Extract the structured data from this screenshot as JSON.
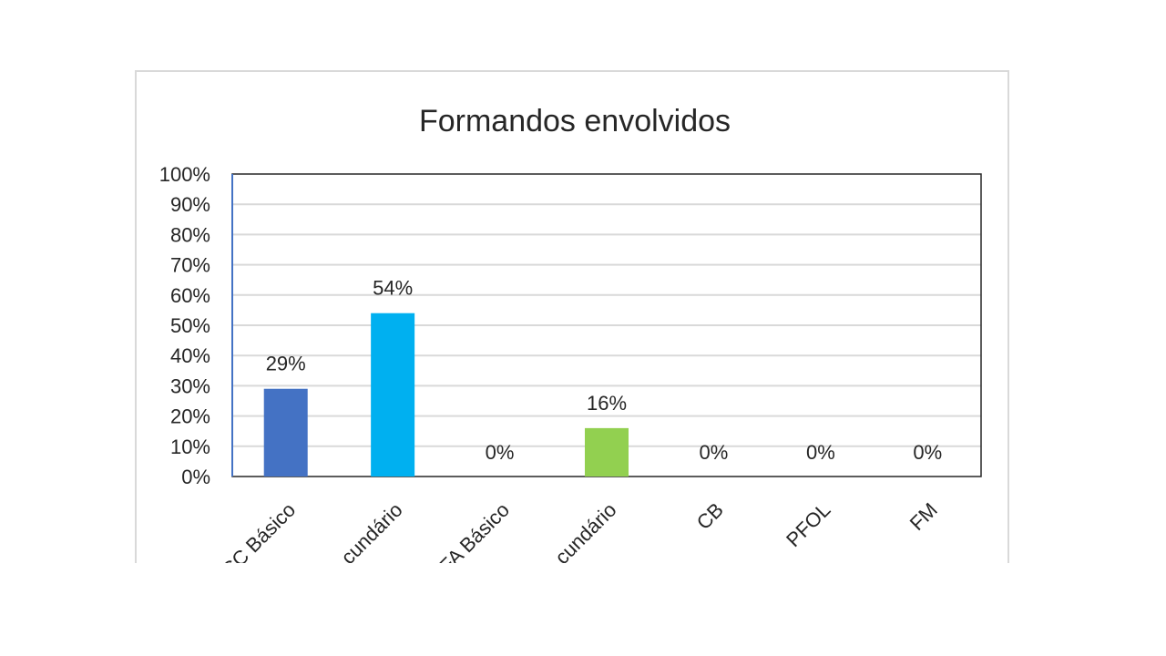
{
  "chart_data": {
    "type": "bar",
    "title": "Formandos envolvidos",
    "xlabel": "",
    "ylabel": "",
    "ylim": [
      0,
      100
    ],
    "y_ticks": [
      "0%",
      "10%",
      "20%",
      "30%",
      "40%",
      "50%",
      "60%",
      "70%",
      "80%",
      "90%",
      "100%"
    ],
    "grid": true,
    "legend": "none",
    "categories": [
      "CC Básico",
      "Secundário",
      "EFA Básico",
      "EFA Secundário",
      "CB",
      "PFOL",
      "FM"
    ],
    "tick_labels_visible": [
      "CC Básico",
      "cundário",
      "FA Básico",
      "cundário",
      "CB",
      "PFOL",
      "FM"
    ],
    "values": [
      29,
      54,
      0,
      16,
      0,
      0,
      0
    ],
    "data_labels": [
      "29%",
      "54%",
      "0%",
      "16%",
      "0%",
      "0%",
      "0%"
    ],
    "colors": [
      "#4472c4",
      "#00b0f0",
      "#4472c4",
      "#92d050",
      "#4472c4",
      "#4472c4",
      "#4472c4"
    ]
  }
}
